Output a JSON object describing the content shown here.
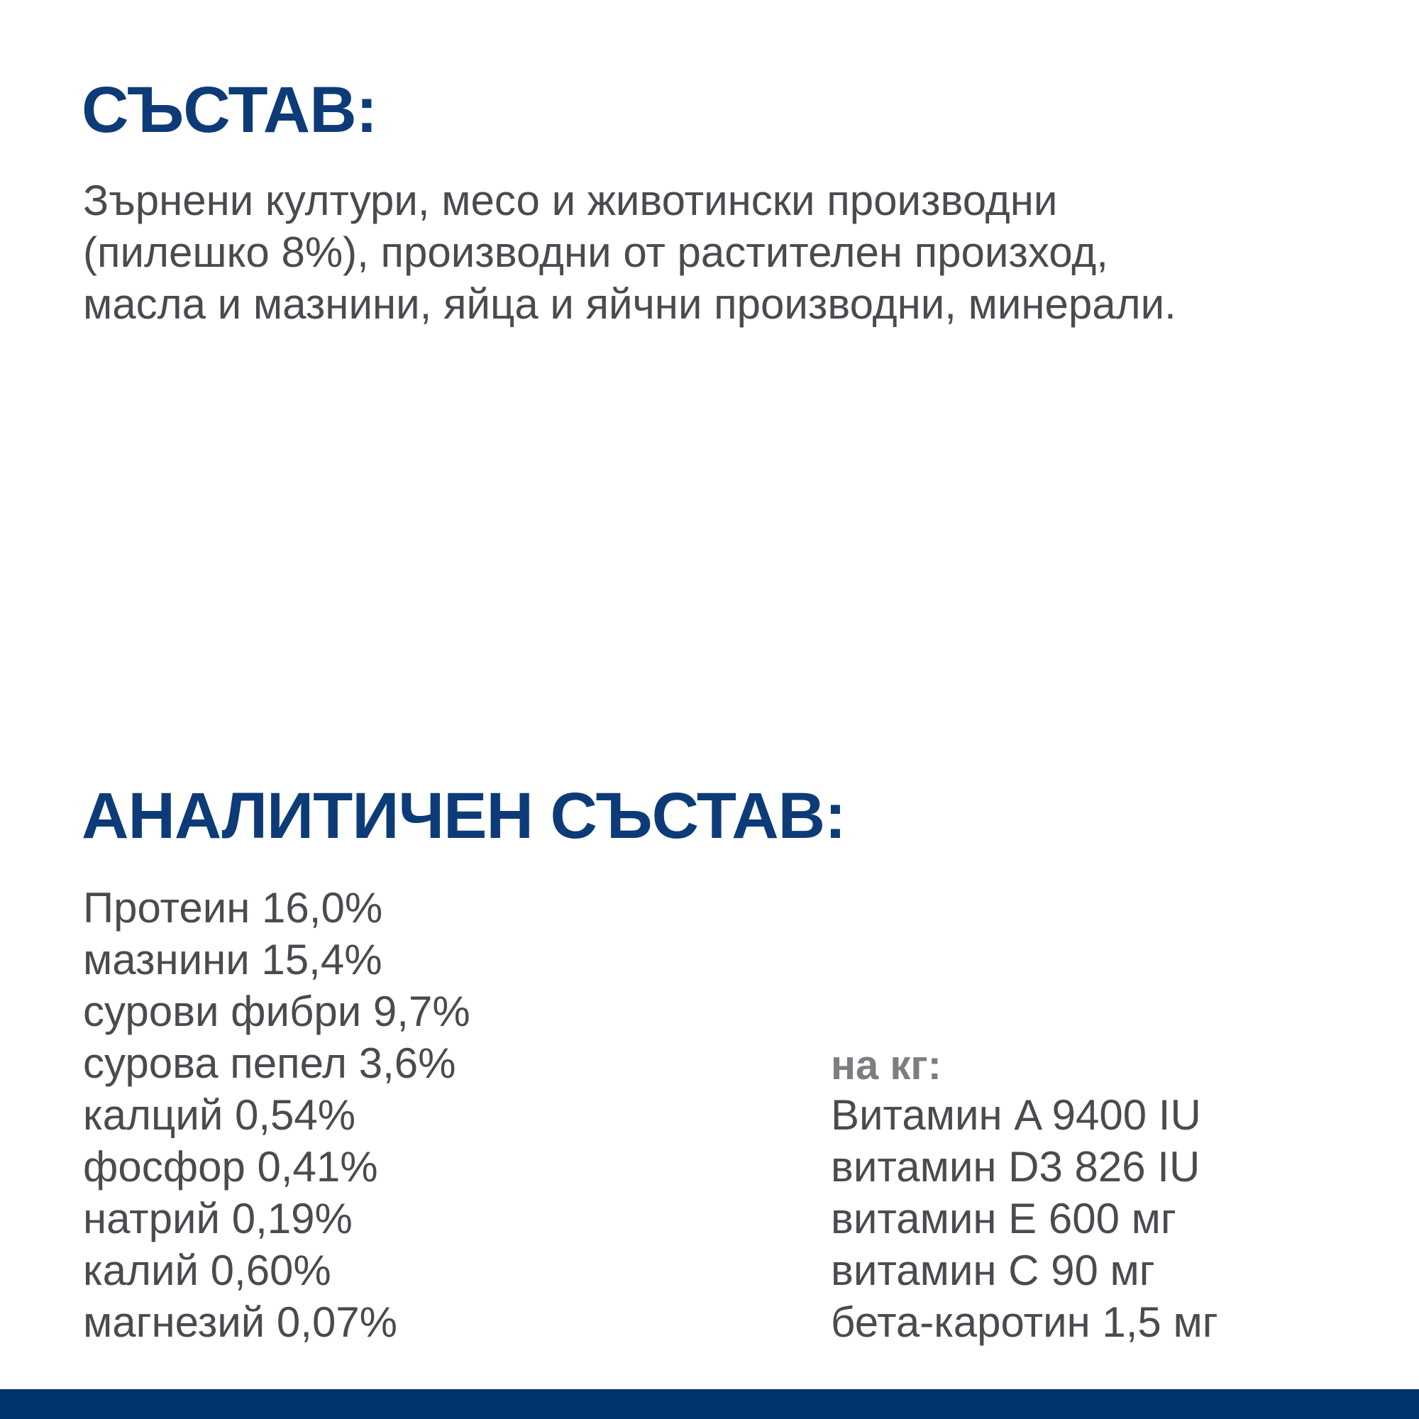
{
  "composition": {
    "title": "СЪСТАВ:",
    "lines": [
      "Зърнени култури, месо и животински производни",
      "(пилешко 8%), производни от растителен произход,",
      "масла и мазнини, яйца и яйчни производни, минерали."
    ]
  },
  "analytical": {
    "title": "АНАЛИТИЧЕН СЪСТАВ:",
    "items": [
      "Протеин 16,0%",
      "мазнини 15,4%",
      "сурови фибри 9,7%",
      "сурова пепел 3,6%",
      "калций 0,54%",
      "фосфор 0,41%",
      "натрий 0,19%",
      "калий 0,60%",
      "магнезий 0,07%"
    ],
    "per_kg_label": "на кг:",
    "vitamins": [
      "Витамин A 9400 IU",
      "витамин D3 826 IU",
      "витамин E 600 мг",
      "витамин C 90 мг",
      "бета-каротин 1,5 мг"
    ]
  },
  "colors": {
    "heading": "#0d3b78",
    "text": "#4a4b50",
    "footer_bar": "#003471"
  }
}
